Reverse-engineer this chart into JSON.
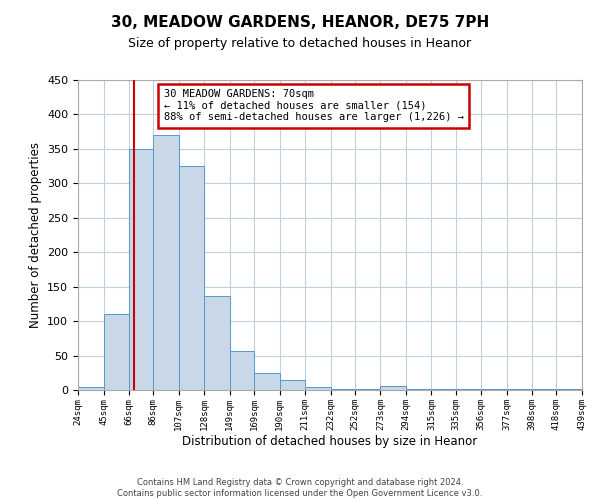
{
  "title": "30, MEADOW GARDENS, HEANOR, DE75 7PH",
  "subtitle": "Size of property relative to detached houses in Heanor",
  "xlabel": "Distribution of detached houses by size in Heanor",
  "ylabel": "Number of detached properties",
  "bin_edges": [
    24,
    45,
    66,
    86,
    107,
    128,
    149,
    169,
    190,
    211,
    232,
    252,
    273,
    294,
    315,
    335,
    356,
    377,
    398,
    418,
    439
  ],
  "bin_counts": [
    5,
    110,
    350,
    370,
    325,
    137,
    56,
    25,
    15,
    5,
    1,
    1,
    6,
    1,
    1,
    1,
    1,
    1,
    1,
    2
  ],
  "bar_facecolor": "#c8d8e8",
  "bar_edgecolor": "#5599cc",
  "property_value": 70,
  "vline_color": "#cc0000",
  "annotation_box_edgecolor": "#cc0000",
  "annotation_line1": "30 MEADOW GARDENS: 70sqm",
  "annotation_line2": "← 11% of detached houses are smaller (154)",
  "annotation_line3": "88% of semi-detached houses are larger (1,226) →",
  "ylim": [
    0,
    450
  ],
  "yticks": [
    0,
    50,
    100,
    150,
    200,
    250,
    300,
    350,
    400,
    450
  ],
  "tick_labels": [
    "24sqm",
    "45sqm",
    "66sqm",
    "86sqm",
    "107sqm",
    "128sqm",
    "149sqm",
    "169sqm",
    "190sqm",
    "211sqm",
    "232sqm",
    "252sqm",
    "273sqm",
    "294sqm",
    "315sqm",
    "335sqm",
    "356sqm",
    "377sqm",
    "398sqm",
    "418sqm",
    "439sqm"
  ],
  "footer_line1": "Contains HM Land Registry data © Crown copyright and database right 2024.",
  "footer_line2": "Contains public sector information licensed under the Open Government Licence v3.0.",
  "background_color": "#ffffff",
  "grid_color": "#c0d0e0",
  "title_fontsize": 11,
  "subtitle_fontsize": 9
}
